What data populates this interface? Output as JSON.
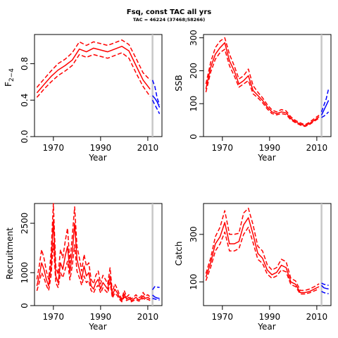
{
  "figure": {
    "title": "Fsq, const TAC all yrs",
    "subtitle": "TAC = 46224 (37468;58266)"
  },
  "chart_data": [
    {
      "id": "fbar",
      "type": "line",
      "xlabel": "Year",
      "ylabel_main": "F",
      "ylabel_sub": "2−4",
      "xlim": [
        1962,
        2016
      ],
      "ylim": [
        0,
        1.12
      ],
      "xticks": [
        1970,
        1990,
        2010
      ],
      "yticks": [
        0,
        0.4,
        0.8
      ],
      "ytick_labels": [
        "0.0",
        "0.4",
        "0.8"
      ],
      "vline_year": 2012,
      "history": {
        "x": [
          1963,
          1966,
          1969,
          1972,
          1975,
          1978,
          1981,
          1984,
          1987,
          1990,
          1993,
          1996,
          1999,
          2002,
          2005,
          2008,
          2011
        ],
        "median": [
          0.48,
          0.57,
          0.66,
          0.73,
          0.78,
          0.84,
          0.96,
          0.93,
          0.97,
          0.95,
          0.93,
          0.96,
          0.99,
          0.94,
          0.78,
          0.62,
          0.52
        ],
        "lower": [
          0.43,
          0.52,
          0.6,
          0.67,
          0.72,
          0.78,
          0.9,
          0.87,
          0.9,
          0.88,
          0.86,
          0.89,
          0.92,
          0.86,
          0.7,
          0.55,
          0.44
        ],
        "upper": [
          0.54,
          0.63,
          0.72,
          0.8,
          0.85,
          0.92,
          1.04,
          1.0,
          1.04,
          1.02,
          1.0,
          1.03,
          1.06,
          1.01,
          0.86,
          0.7,
          0.62
        ]
      },
      "projection": {
        "x": [
          2012,
          2013,
          2014,
          2015
        ],
        "median": [
          0.45,
          0.42,
          0.38,
          0.32
        ],
        "lower": [
          0.4,
          0.35,
          0.3,
          0.25
        ],
        "upper": [
          0.62,
          0.55,
          0.42,
          0.35
        ]
      }
    },
    {
      "id": "ssb",
      "type": "line",
      "xlabel": "Year",
      "ylabel_main": "SSB",
      "xlim": [
        1962,
        2016
      ],
      "ylim": [
        0,
        310
      ],
      "xticks": [
        1970,
        1990,
        2010
      ],
      "yticks": [
        0,
        100,
        200,
        300
      ],
      "ytick_labels": [
        "0",
        "100",
        "200",
        "300"
      ],
      "vline_year": 2012,
      "history": {
        "x": [
          1963,
          1965,
          1967,
          1969,
          1971,
          1973,
          1975,
          1977,
          1979,
          1981,
          1983,
          1985,
          1987,
          1989,
          1991,
          1993,
          1995,
          1997,
          1999,
          2001,
          2003,
          2005,
          2007,
          2009,
          2011
        ],
        "median": [
          145,
          210,
          250,
          270,
          285,
          230,
          200,
          160,
          170,
          185,
          140,
          125,
          110,
          90,
          75,
          70,
          75,
          72,
          55,
          45,
          38,
          33,
          40,
          50,
          60
        ],
        "lower": [
          135,
          195,
          235,
          255,
          265,
          215,
          185,
          150,
          160,
          170,
          130,
          118,
          103,
          84,
          70,
          66,
          70,
          67,
          51,
          42,
          35,
          31,
          37,
          47,
          56
        ],
        "upper": [
          160,
          225,
          270,
          290,
          300,
          250,
          215,
          175,
          185,
          205,
          155,
          135,
          118,
          97,
          81,
          75,
          82,
          78,
          60,
          49,
          42,
          36,
          44,
          55,
          65
        ]
      },
      "projection": {
        "x": [
          2012,
          2013,
          2014,
          2015
        ],
        "median": [
          65,
          80,
          95,
          110
        ],
        "lower": [
          58,
          62,
          68,
          75
        ],
        "upper": [
          75,
          95,
          115,
          145
        ]
      }
    },
    {
      "id": "recruitment",
      "type": "line",
      "xlabel": "Year",
      "ylabel_main": "Recruitment",
      "xlim": [
        1962,
        2016
      ],
      "ylim": [
        0,
        3100
      ],
      "xticks": [
        1970,
        1990,
        2010
      ],
      "yticks": [
        0,
        1000,
        2500
      ],
      "ytick_labels": [
        "0",
        "1000",
        "2500"
      ],
      "vline_year": 2012,
      "history": {
        "x": [
          1963,
          1964,
          1965,
          1966,
          1967,
          1968,
          1969,
          1970,
          1971,
          1972,
          1973,
          1974,
          1975,
          1976,
          1977,
          1978,
          1979,
          1980,
          1981,
          1982,
          1983,
          1984,
          1985,
          1986,
          1987,
          1988,
          1989,
          1990,
          1991,
          1992,
          1993,
          1994,
          1995,
          1996,
          1997,
          1998,
          1999,
          2000,
          2001,
          2002,
          2003,
          2004,
          2005,
          2006,
          2007,
          2008,
          2009,
          2010,
          2011
        ],
        "median": [
          600,
          900,
          1300,
          1100,
          800,
          600,
          1200,
          2600,
          900,
          700,
          1300,
          1100,
          1500,
          1800,
          1000,
          1600,
          2500,
          1400,
          1100,
          800,
          1200,
          900,
          1000,
          600,
          500,
          700,
          800,
          500,
          700,
          600,
          500,
          900,
          300,
          500,
          400,
          250,
          150,
          350,
          200,
          250,
          150,
          200,
          250,
          180,
          200,
          300,
          220,
          250,
          200
        ],
        "lower": [
          450,
          700,
          1000,
          850,
          620,
          460,
          900,
          1900,
          700,
          550,
          1000,
          850,
          1100,
          1350,
          780,
          1200,
          1850,
          1050,
          850,
          620,
          900,
          700,
          760,
          460,
          380,
          540,
          620,
          380,
          540,
          460,
          380,
          700,
          230,
          380,
          310,
          190,
          115,
          270,
          155,
          190,
          115,
          155,
          190,
          140,
          155,
          230,
          170,
          190,
          155
        ],
        "upper": [
          800,
          1200,
          1700,
          1450,
          1050,
          800,
          1600,
          3100,
          1200,
          950,
          1700,
          1450,
          1950,
          2350,
          1300,
          2100,
          3000,
          1800,
          1450,
          1050,
          1550,
          1200,
          1300,
          800,
          660,
          920,
          1050,
          660,
          920,
          800,
          660,
          1150,
          400,
          660,
          520,
          330,
          200,
          460,
          260,
          330,
          200,
          260,
          330,
          240,
          260,
          400,
          290,
          330,
          260
        ]
      },
      "projection": {
        "x": [
          2012,
          2013,
          2014,
          2015
        ],
        "median": [
          320,
          260,
          230,
          220
        ],
        "lower": [
          220,
          200,
          180,
          170
        ],
        "upper": [
          480,
          580,
          560,
          550
        ]
      }
    },
    {
      "id": "catch",
      "type": "line",
      "xlabel": "Year",
      "ylabel_main": "Catch",
      "xlim": [
        1962,
        2016
      ],
      "ylim": [
        0,
        430
      ],
      "xticks": [
        1970,
        1990,
        2010
      ],
      "yticks": [
        100,
        300
      ],
      "ytick_labels": [
        "100",
        "300"
      ],
      "vline_year": 2012,
      "history": {
        "x": [
          1963,
          1965,
          1967,
          1969,
          1971,
          1973,
          1975,
          1977,
          1979,
          1981,
          1983,
          1985,
          1987,
          1989,
          1991,
          1993,
          1995,
          1997,
          1999,
          2001,
          2003,
          2005,
          2007,
          2009,
          2011
        ],
        "median": [
          120,
          180,
          260,
          290,
          350,
          260,
          260,
          270,
          340,
          370,
          300,
          220,
          200,
          150,
          130,
          140,
          170,
          160,
          100,
          90,
          55,
          55,
          60,
          70,
          80
        ],
        "lower": [
          105,
          160,
          230,
          260,
          310,
          230,
          230,
          240,
          300,
          330,
          265,
          195,
          178,
          133,
          115,
          125,
          150,
          142,
          89,
          80,
          49,
          49,
          54,
          62,
          71
        ],
        "upper": [
          135,
          200,
          290,
          330,
          400,
          300,
          300,
          305,
          390,
          410,
          340,
          250,
          230,
          172,
          150,
          160,
          195,
          185,
          115,
          104,
          64,
          64,
          70,
          80,
          92
        ]
      },
      "projection": {
        "x": [
          2012,
          2013,
          2014,
          2015
        ],
        "median": [
          85,
          75,
          72,
          70
        ],
        "lower": [
          60,
          55,
          52,
          50
        ],
        "upper": [
          95,
          90,
          88,
          85
        ]
      }
    }
  ]
}
